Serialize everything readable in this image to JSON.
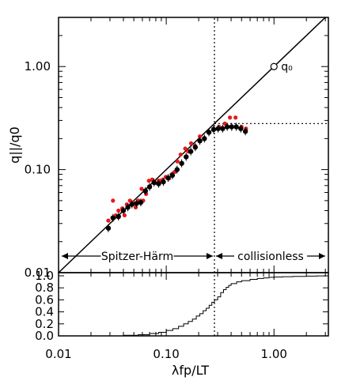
{
  "chart_data": [
    {
      "type": "scatter",
      "title": "",
      "xlabel": "λfp/LT",
      "ylabel": "q||/q0",
      "x_scale": "log",
      "y_scale": "log",
      "xlim": [
        0.01,
        3.2
      ],
      "ylim": [
        0.01,
        3.0
      ],
      "x_ticks": [
        0.01,
        0.1,
        1.0
      ],
      "x_tick_labels": [
        "0.01",
        "0.10",
        "1.00"
      ],
      "y_ticks": [
        0.01,
        0.1,
        1.0
      ],
      "y_tick_labels": [
        "0.01",
        "0.10",
        "1.00"
      ],
      "grid": false,
      "reference_line": {
        "slope": 1,
        "intercept": 0,
        "description": "q||/q0 = λfp/LT"
      },
      "q0_point": {
        "x": 1.0,
        "y": 1.0,
        "label": "q₀"
      },
      "vertical_dotted_x": 0.28,
      "horizontal_dotted_y": 0.28,
      "annotations": {
        "left_region": "Spitzer-Härm",
        "right_region": "collisionless"
      },
      "series": [
        {
          "color": "#e8191b",
          "x": [
            0.029,
            0.032,
            0.034,
            0.036,
            0.039,
            0.041,
            0.043,
            0.046,
            0.049,
            0.052,
            0.055,
            0.059,
            0.061,
            0.065,
            0.069,
            0.074,
            0.079,
            0.085,
            0.088,
            0.093,
            0.099,
            0.106,
            0.112,
            0.12,
            0.127,
            0.136,
            0.15,
            0.16,
            0.17,
            0.185,
            0.205,
            0.225,
            0.25,
            0.275,
            0.31,
            0.35,
            0.39,
            0.44,
            0.5,
            0.55
          ],
          "y": [
            0.032,
            0.05,
            0.036,
            0.04,
            0.042,
            0.036,
            0.046,
            0.05,
            0.048,
            0.043,
            0.05,
            0.065,
            0.05,
            0.058,
            0.078,
            0.08,
            0.074,
            0.078,
            0.078,
            0.08,
            0.085,
            0.082,
            0.09,
            0.095,
            0.12,
            0.14,
            0.16,
            0.15,
            0.18,
            0.17,
            0.21,
            0.2,
            0.23,
            0.25,
            0.26,
            0.28,
            0.32,
            0.32,
            0.26,
            0.25
          ]
        },
        {
          "color": "#000000",
          "x": [
            0.029,
            0.032,
            0.036,
            0.04,
            0.044,
            0.048,
            0.053,
            0.058,
            0.064,
            0.07,
            0.077,
            0.085,
            0.094,
            0.104,
            0.114,
            0.126,
            0.139,
            0.153,
            0.169,
            0.186,
            0.205,
            0.226,
            0.249,
            0.275,
            0.303,
            0.334,
            0.368,
            0.405,
            0.447,
            0.492,
            0.543
          ],
          "y": [
            0.027,
            0.034,
            0.035,
            0.04,
            0.043,
            0.046,
            0.047,
            0.048,
            0.062,
            0.068,
            0.075,
            0.073,
            0.076,
            0.083,
            0.088,
            0.1,
            0.115,
            0.133,
            0.15,
            0.165,
            0.19,
            0.2,
            0.23,
            0.245,
            0.25,
            0.25,
            0.26,
            0.26,
            0.26,
            0.25,
            0.235
          ]
        }
      ]
    },
    {
      "type": "line",
      "title": "",
      "xlabel": "λfp/LT",
      "ylabel": "",
      "x_scale": "log",
      "xlim": [
        0.01,
        3.2
      ],
      "ylim": [
        0.0,
        1.0
      ],
      "y_ticks": [
        0.0,
        0.2,
        0.4,
        0.6,
        0.8,
        1.0
      ],
      "y_tick_labels": [
        "0.0",
        "0.2",
        "0.4",
        "0.6",
        "0.8",
        "1.0"
      ],
      "x_ticks": [
        0.01,
        0.1,
        1.0
      ],
      "x_tick_labels": [
        "0.01",
        "0.10",
        "1.00"
      ],
      "step": true,
      "description_of_curve": "cumulative distribution",
      "x": [
        0.04,
        0.055,
        0.07,
        0.085,
        0.1,
        0.115,
        0.13,
        0.145,
        0.16,
        0.175,
        0.19,
        0.205,
        0.22,
        0.235,
        0.25,
        0.265,
        0.28,
        0.3,
        0.32,
        0.34,
        0.36,
        0.38,
        0.4,
        0.45,
        0.5,
        0.6,
        0.7,
        0.8,
        0.9,
        1.0,
        1.2,
        1.5,
        2.0,
        2.5,
        3.0
      ],
      "y": [
        0.01,
        0.02,
        0.04,
        0.06,
        0.09,
        0.12,
        0.16,
        0.2,
        0.24,
        0.28,
        0.33,
        0.37,
        0.42,
        0.46,
        0.51,
        0.56,
        0.6,
        0.65,
        0.72,
        0.77,
        0.81,
        0.84,
        0.87,
        0.9,
        0.92,
        0.94,
        0.955,
        0.965,
        0.975,
        0.98,
        0.985,
        0.99,
        0.995,
        0.998,
        1.0
      ]
    }
  ]
}
